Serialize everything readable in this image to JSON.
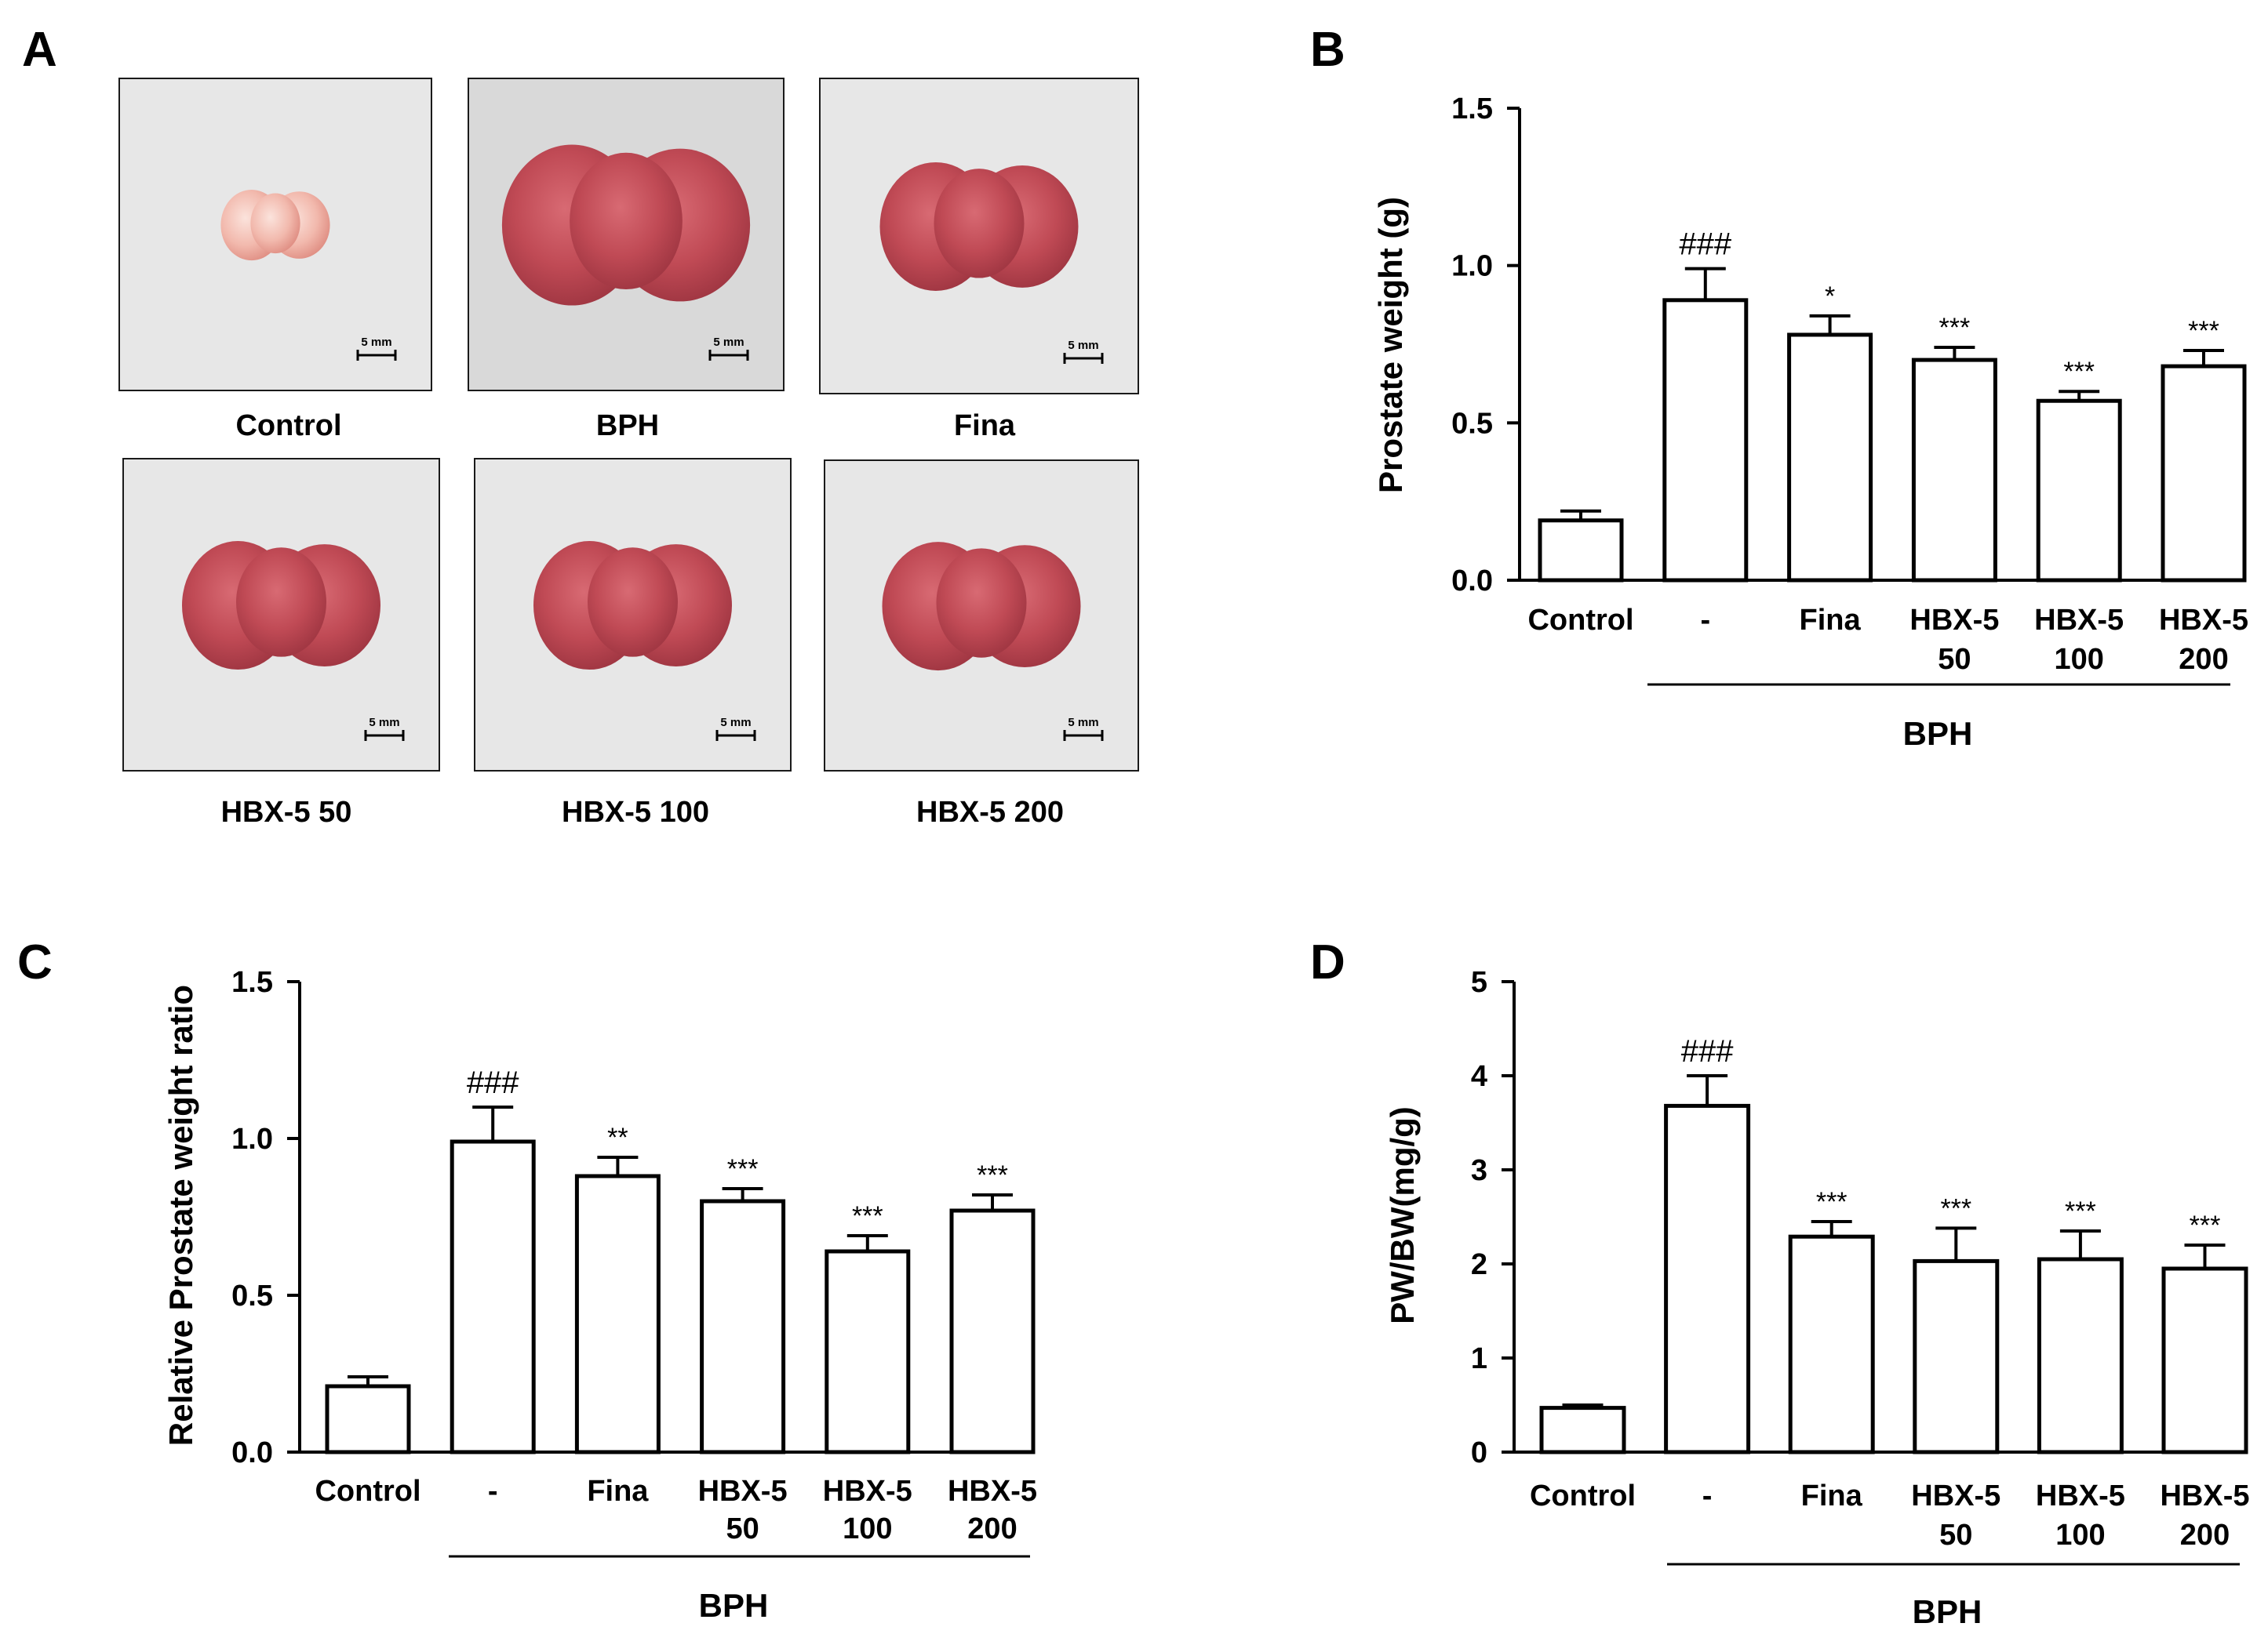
{
  "figure": {
    "panel_a": {
      "letter": "A",
      "scale_label": "5 mm",
      "photos": [
        {
          "label": "Control",
          "size": "small"
        },
        {
          "label": "BPH",
          "size": "large"
        },
        {
          "label": "Fina",
          "size": "medium"
        },
        {
          "label": "HBX-5 50",
          "size": "medium"
        },
        {
          "label": "HBX-5 100",
          "size": "medium"
        },
        {
          "label": "HBX-5 200",
          "size": "medium"
        }
      ]
    },
    "group_label": "BPH"
  },
  "chart_data": [
    {
      "panel": "B",
      "type": "bar",
      "title": "",
      "xlabel": "",
      "ylabel": "Prostate weight (g)",
      "ylim": [
        0,
        1.5
      ],
      "yticks": [
        "0.0",
        "0.5",
        "1.0",
        "1.5"
      ],
      "categories": [
        [
          "Control"
        ],
        [
          "-"
        ],
        [
          "Fina"
        ],
        [
          "HBX-5",
          "50"
        ],
        [
          "HBX-5",
          "100"
        ],
        [
          "HBX-5",
          "200"
        ]
      ],
      "values": [
        0.19,
        0.89,
        0.78,
        0.7,
        0.57,
        0.68
      ],
      "errors": [
        0.03,
        0.1,
        0.06,
        0.04,
        0.03,
        0.05
      ],
      "annotations": [
        "",
        "###",
        "*",
        "***",
        "***",
        "***"
      ],
      "group_bracket": {
        "label": "BPH",
        "from_index": 1,
        "to_index": 5
      }
    },
    {
      "panel": "C",
      "type": "bar",
      "title": "",
      "xlabel": "",
      "ylabel": "Relative Prostate weight ratio",
      "ylim": [
        0,
        1.5
      ],
      "yticks": [
        "0.0",
        "0.5",
        "1.0",
        "1.5"
      ],
      "categories": [
        [
          "Control"
        ],
        [
          "-"
        ],
        [
          "Fina"
        ],
        [
          "HBX-5",
          "50"
        ],
        [
          "HBX-5",
          "100"
        ],
        [
          "HBX-5",
          "200"
        ]
      ],
      "values": [
        0.21,
        0.99,
        0.88,
        0.8,
        0.64,
        0.77
      ],
      "errors": [
        0.03,
        0.11,
        0.06,
        0.04,
        0.05,
        0.05
      ],
      "annotations": [
        "",
        "###",
        "**",
        "***",
        "***",
        "***"
      ],
      "group_bracket": {
        "label": "BPH",
        "from_index": 1,
        "to_index": 5
      }
    },
    {
      "panel": "D",
      "type": "bar",
      "title": "",
      "xlabel": "",
      "ylabel": "PW/BW(mg/g)",
      "ylim": [
        0,
        5
      ],
      "yticks": [
        "0",
        "1",
        "2",
        "3",
        "4",
        "5"
      ],
      "categories": [
        [
          "Control"
        ],
        [
          "-"
        ],
        [
          "Fina"
        ],
        [
          "HBX-5",
          "50"
        ],
        [
          "HBX-5",
          "100"
        ],
        [
          "HBX-5",
          "200"
        ]
      ],
      "values": [
        0.47,
        3.68,
        2.29,
        2.03,
        2.05,
        1.95
      ],
      "errors": [
        0.03,
        0.32,
        0.16,
        0.35,
        0.3,
        0.25
      ],
      "annotations": [
        "",
        "###",
        "***",
        "***",
        "***",
        "***"
      ],
      "group_bracket": {
        "label": "BPH",
        "from_index": 1,
        "to_index": 5
      }
    }
  ]
}
